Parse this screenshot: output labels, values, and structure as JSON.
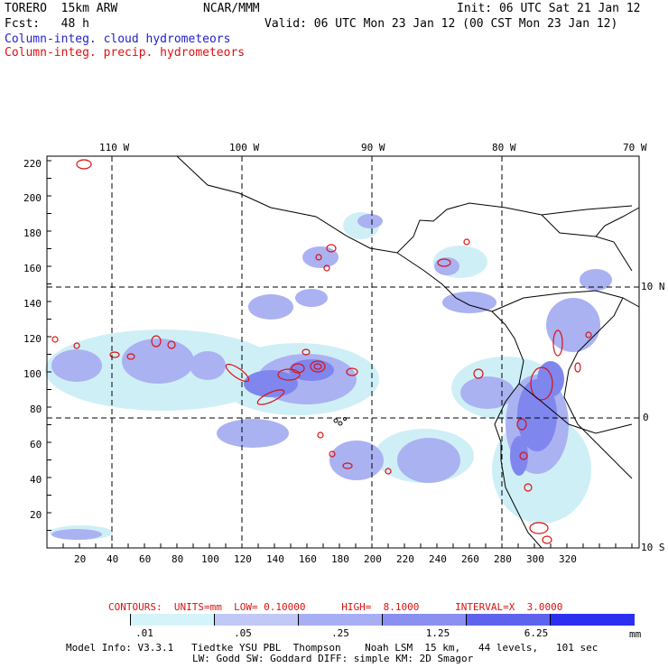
{
  "header": {
    "model": "TORERO  15km ARW",
    "center": "NCAR/MMM",
    "init": "Init: 06 UTC Sat 21 Jan 12",
    "fcst": "Fcst:   48 h",
    "valid": "Valid: 06 UTC Mon 23 Jan 12 (00 CST Mon 23 Jan 12)",
    "field1": "Column-integ. cloud hydrometeors",
    "field2": "Column-integ. precip. hydrometeors"
  },
  "colors": {
    "field1": "#2222cc",
    "field2": "#dd1111",
    "shade_light": "#cfeff7",
    "shade_mid": "#aab2f2",
    "shade_dark": "#7f86ee",
    "contour": "#dd1111"
  },
  "map": {
    "lon_labels": [
      "110 W",
      "100 W",
      "90 W",
      "80 W",
      "70 W"
    ],
    "lat_labels": [
      "10 N",
      "0",
      "10 S"
    ],
    "y_ticks": [
      "220",
      "200",
      "180",
      "160",
      "140",
      "120",
      "100",
      "80",
      "60",
      "40",
      "20"
    ],
    "x_ticks": [
      "20",
      "40",
      "60",
      "80",
      "100",
      "120",
      "140",
      "160",
      "180",
      "200",
      "220",
      "240",
      "260",
      "280",
      "300",
      "320"
    ]
  },
  "contours_line": "CONTOURS:  UNITS=mm  LOW= 0.10000      HIGH=  8.1000      INTERVAL=X  3.0000",
  "colorbar": {
    "labels": [
      ".01",
      ".05",
      ".25",
      "1.25",
      "6.25"
    ],
    "unit": "mm",
    "colors": [
      "#ffffff",
      "#d4f4f9",
      "#c0c8f6",
      "#a8aef4",
      "#8a8ff0",
      "#5e63ee",
      "#2c2ff0"
    ]
  },
  "footer": {
    "line1": "Model Info: V3.3.1   Tiedtke YSU PBL  Thompson    Noah LSM  15 km,   44 levels,   101 sec",
    "line2": "LW: Godd SW: Goddard DIFF: simple KM: 2D Smagor"
  }
}
